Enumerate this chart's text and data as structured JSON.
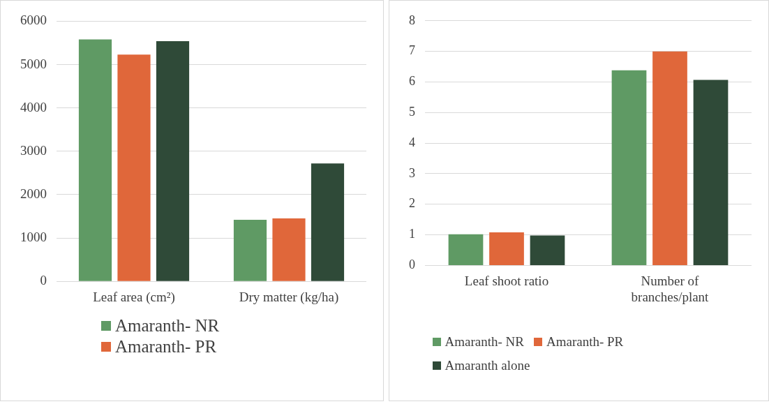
{
  "chart_data": [
    {
      "type": "bar",
      "categories": [
        "Leaf area (cm²)",
        "Dry matter (kg/ha)"
      ],
      "series": [
        {
          "name": "Amaranth- NR",
          "color": "#5f9a64",
          "values": [
            5580,
            1420
          ]
        },
        {
          "name": "Amaranth- PR",
          "color": "#e0673a",
          "values": [
            5230,
            1450
          ]
        },
        {
          "color": "#2f4a38",
          "values": [
            5540,
            2720
          ]
        }
      ],
      "ylim": [
        0,
        6000
      ],
      "yticks": [
        0,
        1000,
        2000,
        3000,
        4000,
        5000,
        6000
      ],
      "grid": "y",
      "legend": "bottom"
    },
    {
      "type": "bar",
      "categories": [
        "Leaf shoot ratio",
        "Number of branches/plant"
      ],
      "series": [
        {
          "name": "Amaranth- NR",
          "color": "#5f9a64",
          "values": [
            1.02,
            6.38
          ]
        },
        {
          "name": "Amaranth- PR",
          "color": "#e0673a",
          "values": [
            1.08,
            7.0
          ]
        },
        {
          "name": "Amaranth alone",
          "color": "#2f4a38",
          "values": [
            0.98,
            6.07
          ]
        }
      ],
      "ylim": [
        0,
        8
      ],
      "yticks": [
        0,
        1,
        2,
        3,
        4,
        5,
        6,
        7,
        8
      ],
      "grid": "y",
      "legend": "bottom"
    }
  ]
}
